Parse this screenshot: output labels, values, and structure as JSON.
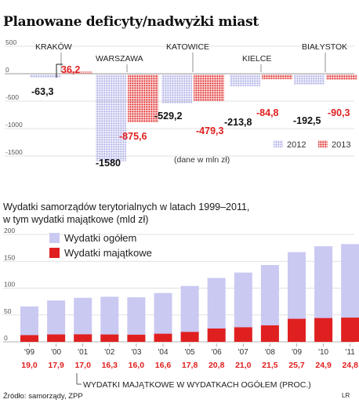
{
  "title": "Planowane deficyty/nadwyżki miast",
  "colors": {
    "y2012": "#a9a9e6",
    "y2013": "#e02020",
    "total": "#c9c9f2",
    "capital": "#e02020"
  },
  "chart_data": [
    {
      "type": "bar",
      "title": "Planowane deficyty/nadwyżki miast",
      "unit_note": "(dane w mln zł)",
      "categories": [
        "KRAKÓW",
        "WARSZAWA",
        "KATOWICE",
        "KIELCE",
        "BIAŁYSTOK"
      ],
      "series": [
        {
          "name": "2012",
          "values": [
            -63.3,
            -1580,
            -529.2,
            -213.8,
            -192.5
          ]
        },
        {
          "name": "2013",
          "values": [
            36.2,
            -875.6,
            -479.3,
            -84.8,
            -90.3
          ]
        }
      ],
      "value_labels": {
        "2012": [
          "-63,3",
          "-1580",
          "-529,2",
          "-213,8",
          "-192,5"
        ],
        "2013": [
          "36,2",
          "-875,6",
          "-479,3",
          "-84,8",
          "-90,3"
        ]
      },
      "yticks": [
        "500",
        "0",
        "-500",
        "-1000",
        "-1500"
      ],
      "ylim": [
        -1650,
        500
      ],
      "legend_position": "bottom-right",
      "grid": true
    },
    {
      "type": "bar",
      "title": "Wydatki samorządów terytorialnych w latach 1999–2011, w tym wydatki majątkowe (mld zł)",
      "title_lines": [
        "Wydatki samorządów terytorialnych w latach 1999–2011,",
        "w tym wydatki majątkowe (mld zł)"
      ],
      "categories": [
        "'99",
        "'00",
        "'01",
        "'02",
        "'03",
        "'04",
        "'05",
        "'06",
        "'07",
        "'08",
        "'09",
        "'10",
        "'11"
      ],
      "series": [
        {
          "name": "Wydatki ogółem",
          "values": [
            66,
            77,
            82,
            84,
            83,
            91,
            104,
            119,
            129,
            143,
            167,
            178,
            182
          ]
        },
        {
          "name": "Wydatki majątkowe",
          "values": [
            12.5,
            13.8,
            14.0,
            13.7,
            13.3,
            15.1,
            18.5,
            24.8,
            27.1,
            30.7,
            42.9,
            44.3,
            45.1
          ]
        }
      ],
      "share_label": "WYDATKI MAJĄTKOWE W WYDATKACH OGÓŁEM (PROC.)",
      "share_values": [
        "19,0",
        "17,9",
        "17,0",
        "16,3",
        "16,0",
        "16,6",
        "17,8",
        "20,8",
        "21,0",
        "21,5",
        "25,7",
        "24,9",
        "24,8"
      ],
      "yticks": [
        "200",
        "150",
        "100",
        "50",
        "0"
      ],
      "ylim": [
        0,
        200
      ],
      "legend_position": "top-left",
      "grid": true
    }
  ],
  "source": "Źródło: samorządy, ZPP",
  "credit": "LR"
}
